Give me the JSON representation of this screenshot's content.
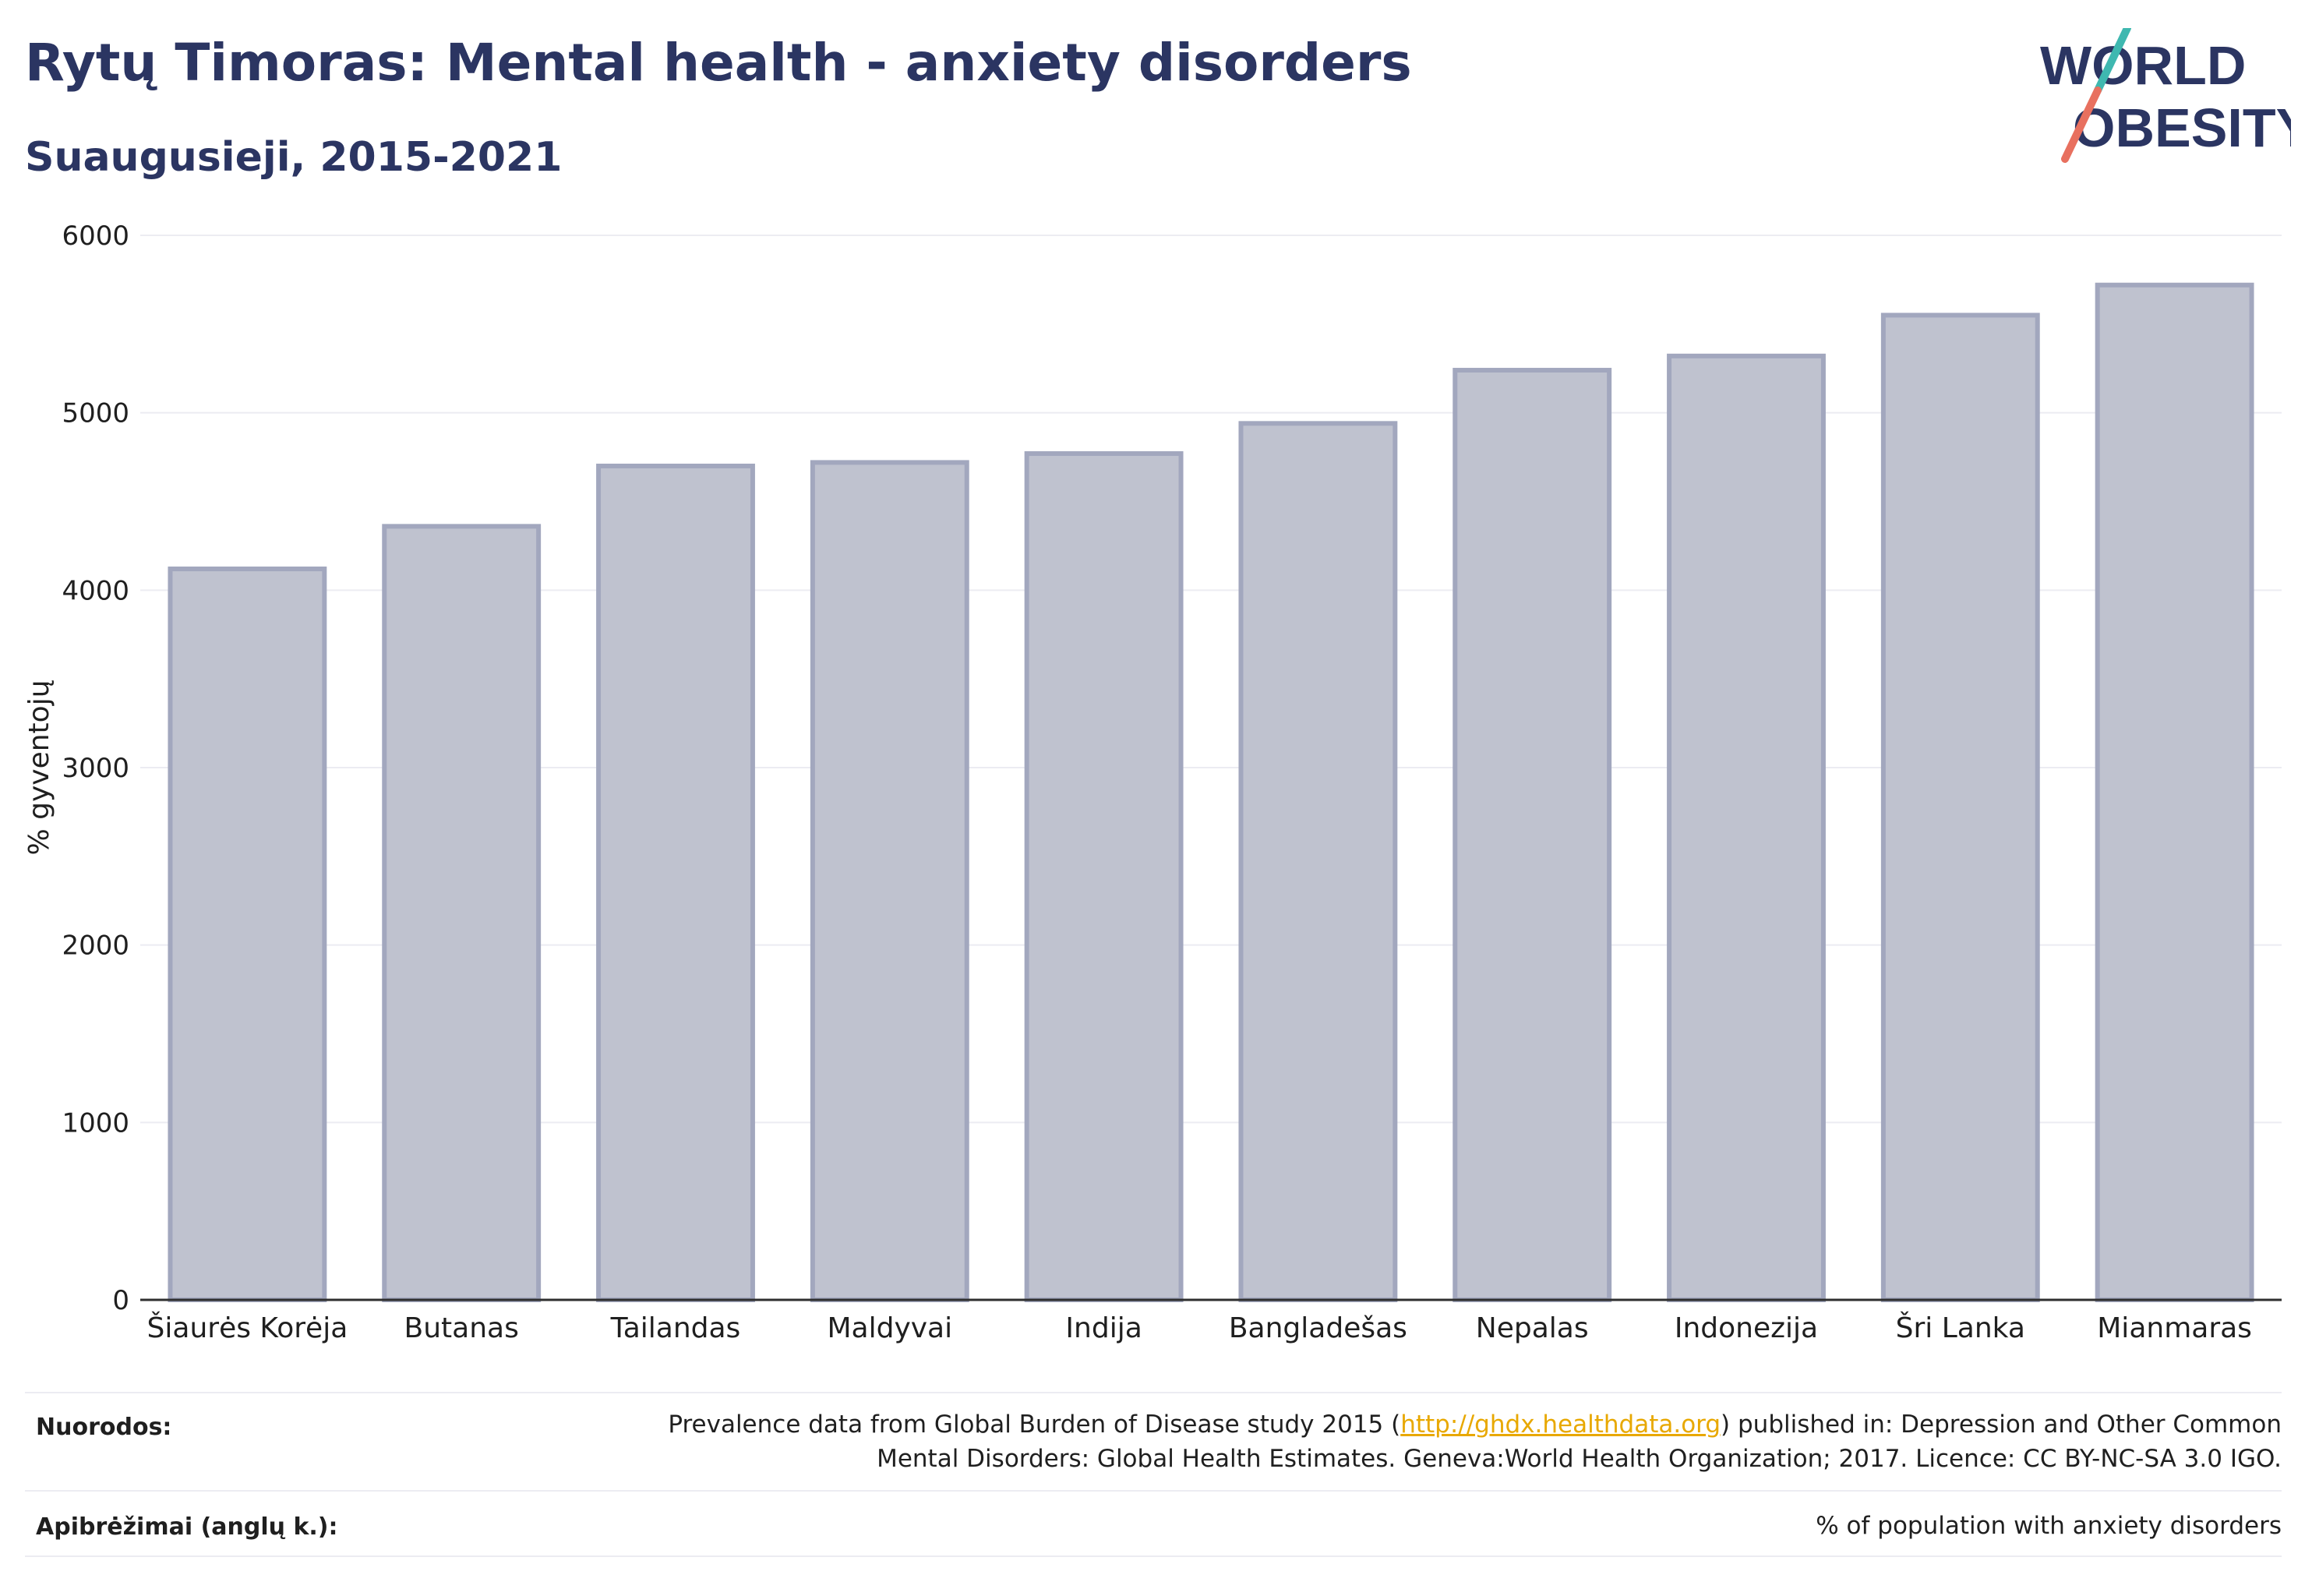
{
  "header": {
    "title": "Rytų Timoras: Mental health - anxiety disorders",
    "subtitle": "Suaugusieji, 2015-2021"
  },
  "logo": {
    "line1": "WORLD",
    "line2": "OBESITY"
  },
  "chart_data": {
    "type": "bar",
    "categories": [
      "Šiaurės Korėja",
      "Butanas",
      "Tailandas",
      "Maldyvai",
      "Indija",
      "Bangladešas",
      "Nepalas",
      "Indonezija",
      "Šri Lanka",
      "Mianmaras"
    ],
    "values": [
      4120,
      4360,
      4700,
      4720,
      4770,
      4940,
      5240,
      5320,
      5550,
      5720
    ],
    "ylabel": "% gyventojų",
    "xlabel": "",
    "ylim": [
      0,
      6000
    ],
    "yticks": [
      0,
      1000,
      2000,
      3000,
      4000,
      5000,
      6000
    ],
    "grid": true,
    "bar_color": "#bfc2cf",
    "bar_stroke": "#a2a7be"
  },
  "footer": {
    "sources_label": "Nuorodos:",
    "sources_prefix": "Prevalence data from Global Burden of Disease study 2015 (",
    "sources_link": "http://ghdx.healthdata.org",
    "sources_suffix": ") published in: Depression and Other Common",
    "sources_line2": "Mental Disorders: Global Health Estimates. Geneva:World Health Organization; 2017. Licence: CC BY-NC-SA 3.0 IGO.",
    "definitions_label": "Apibrėžimai (anglų k.):",
    "definitions_text": "% of population with anxiety disorders"
  }
}
